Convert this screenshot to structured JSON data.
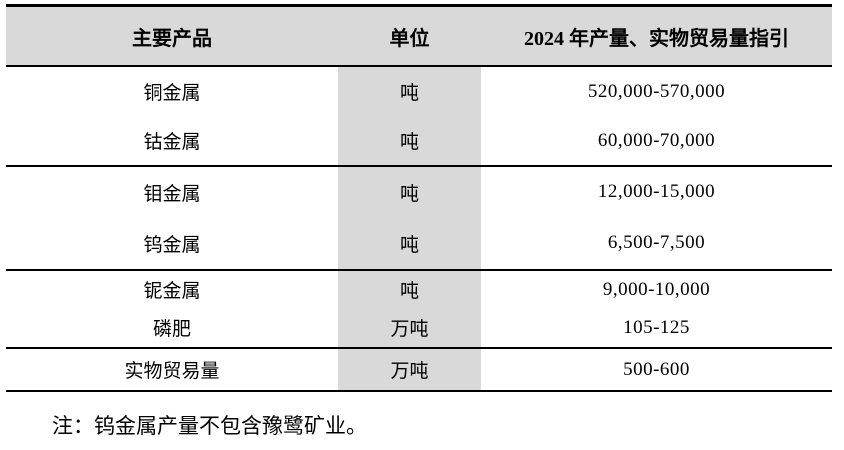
{
  "table": {
    "columns": [
      "主要产品",
      "单位",
      "2024 年产量、实物贸易量指引"
    ],
    "rows": [
      {
        "product": "铜金属",
        "unit": "吨",
        "guidance": "520,000-570,000"
      },
      {
        "product": "钴金属",
        "unit": "吨",
        "guidance": "60,000-70,000"
      },
      {
        "product": "钼金属",
        "unit": "吨",
        "guidance": "12,000-15,000"
      },
      {
        "product": "钨金属",
        "unit": "吨",
        "guidance": "6,500-7,500"
      },
      {
        "product": "铌金属",
        "unit": "吨",
        "guidance": "9,000-10,000"
      },
      {
        "product": "磷肥",
        "unit": "万吨",
        "guidance": "105-125"
      },
      {
        "product": "实物贸易量",
        "unit": "万吨",
        "guidance": "500-600"
      }
    ]
  },
  "note": "注：钨金属产量不包含豫鹭矿业。",
  "colors": {
    "shaded_bg": "#d9d9d9",
    "border": "#000000",
    "text": "#000000"
  }
}
